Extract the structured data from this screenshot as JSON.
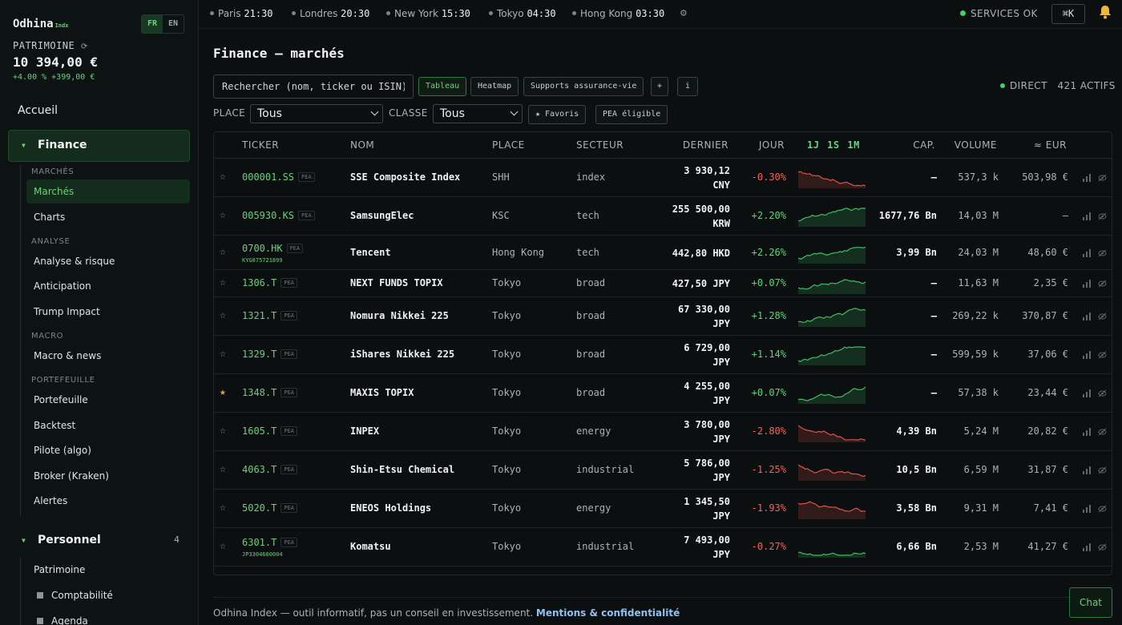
{
  "brand": {
    "name": "Odhina",
    "sub": "Indx"
  },
  "lang": {
    "fr": "FR",
    "en": "EN"
  },
  "patrimoine": {
    "label": "PATRIMOINE",
    "refresh_glyph": "⟳",
    "value": "10 394,00 €",
    "change": "+4.00 % +399,00 €"
  },
  "nav": {
    "accueil": "Accueil",
    "finance": {
      "title": "Finance",
      "groups": {
        "marches": "MARCHÉS",
        "analyse": "ANALYSE",
        "macro": "MACRO",
        "portefeuille": "PORTEFEUILLE"
      },
      "items": {
        "marches": "Marchés",
        "charts": "Charts",
        "analyse_risque": "Analyse & risque",
        "anticipation": "Anticipation",
        "trump": "Trump Impact",
        "macro_news": "Macro & news",
        "portefeuille": "Portefeuille",
        "backtest": "Backtest",
        "pilote": "Pilote (algo)",
        "broker": "Broker (Kraken)",
        "alertes": "Alertes"
      }
    },
    "personnel": {
      "title": "Personnel",
      "count": "4",
      "items": {
        "patrimoine": "Patrimoine",
        "comptabilite": "Comptabilité",
        "agenda": "Agenda"
      }
    }
  },
  "clocks": [
    {
      "city": "Paris",
      "time": "21:30"
    },
    {
      "city": "Londres",
      "time": "20:30"
    },
    {
      "city": "New York",
      "time": "15:30"
    },
    {
      "city": "Tokyo",
      "time": "04:30"
    },
    {
      "city": "Hong Kong",
      "time": "03:30"
    }
  ],
  "topbar": {
    "gear_glyph": "⚙",
    "services": "SERVICES OK",
    "shortcut": "⌘K"
  },
  "page": {
    "title": "Finance — marchés"
  },
  "toolbar": {
    "search_placeholder": "Rechercher (nom, ticker ou ISIN).",
    "tableau": "Tableau",
    "heatmap": "Heatmap",
    "supports": "Supports assurance-vie",
    "plus": "+",
    "info": "i",
    "direct": "DIRECT",
    "actifs": "421 ACTIFS"
  },
  "filters": {
    "place_label": "PLACE",
    "place_value": "Tous",
    "classe_label": "CLASSE",
    "classe_value": "Tous",
    "favoris": "★ Favoris",
    "pea": "PEA éligible"
  },
  "table": {
    "headers": {
      "ticker": "TICKER",
      "nom": "NOM",
      "place": "PLACE",
      "secteur": "SECTEUR",
      "dernier": "DERNIER",
      "jour": "JOUR",
      "periods": "1J 1S 1M",
      "cap": "CAP.",
      "volume": "VOLUME",
      "eur": "≈ EUR"
    },
    "pea_badge": "PEA",
    "star_glyph": "☆",
    "star_fav_glyph": "★",
    "rows": [
      {
        "ticker": "000001.SS",
        "isin": "",
        "nom": "SSE Composite Index",
        "place": "SHH",
        "secteur": "index",
        "dernier_1": "3 930,12",
        "dernier_2": "CNY",
        "jour": "-0.30%",
        "cap": "—",
        "volume": "537,3 k",
        "eur": "503,98 €",
        "fav": false,
        "trend": "down"
      },
      {
        "ticker": "005930.KS",
        "isin": "",
        "nom": "SamsungElec",
        "place": "KSC",
        "secteur": "tech",
        "dernier_1": "255 500,00",
        "dernier_2": "KRW",
        "jour": "+2.20%",
        "cap": "1677,76 Bn",
        "volume": "14,03 M",
        "eur": "—",
        "fav": false,
        "trend": "up"
      },
      {
        "ticker": "0700.HK",
        "isin": "KYG875721899",
        "nom": "Tencent",
        "place": "Hong Kong",
        "secteur": "tech",
        "dernier_1": "442,80 HKD",
        "dernier_2": "",
        "jour": "+2.26%",
        "cap": "3,99 Bn",
        "volume": "24,03 M",
        "eur": "48,60 €",
        "fav": false,
        "trend": "up"
      },
      {
        "ticker": "1306.T",
        "isin": "",
        "nom": "NEXT FUNDS TOPIX",
        "place": "Tokyo",
        "secteur": "broad",
        "dernier_1": "427,50 JPY",
        "dernier_2": "",
        "jour": "+0.07%",
        "cap": "—",
        "volume": "11,63 M",
        "eur": "2,35 €",
        "fav": false,
        "trend": "up"
      },
      {
        "ticker": "1321.T",
        "isin": "",
        "nom": "Nomura Nikkei 225",
        "place": "Tokyo",
        "secteur": "broad",
        "dernier_1": "67 330,00",
        "dernier_2": "JPY",
        "jour": "+1.28%",
        "cap": "—",
        "volume": "269,22 k",
        "eur": "370,87 €",
        "fav": false,
        "trend": "up"
      },
      {
        "ticker": "1329.T",
        "isin": "",
        "nom": "iShares Nikkei 225",
        "place": "Tokyo",
        "secteur": "broad",
        "dernier_1": "6 729,00",
        "dernier_2": "JPY",
        "jour": "+1.14%",
        "cap": "—",
        "volume": "599,59 k",
        "eur": "37,06 €",
        "fav": false,
        "trend": "up"
      },
      {
        "ticker": "1348.T",
        "isin": "",
        "nom": "MAXIS TOPIX",
        "place": "Tokyo",
        "secteur": "broad",
        "dernier_1": "4 255,00",
        "dernier_2": "JPY",
        "jour": "+0.07%",
        "cap": "—",
        "volume": "57,38 k",
        "eur": "23,44 €",
        "fav": true,
        "trend": "up"
      },
      {
        "ticker": "1605.T",
        "isin": "",
        "nom": "INPEX",
        "place": "Tokyo",
        "secteur": "energy",
        "dernier_1": "3 780,00",
        "dernier_2": "JPY",
        "jour": "-2.80%",
        "cap": "4,39 Bn",
        "volume": "5,24 M",
        "eur": "20,82 €",
        "fav": false,
        "trend": "down"
      },
      {
        "ticker": "4063.T",
        "isin": "",
        "nom": "Shin-Etsu Chemical",
        "place": "Tokyo",
        "secteur": "industrial",
        "dernier_1": "5 786,00",
        "dernier_2": "JPY",
        "jour": "-1.25%",
        "cap": "10,5 Bn",
        "volume": "6,59 M",
        "eur": "31,87 €",
        "fav": false,
        "trend": "down"
      },
      {
        "ticker": "5020.T",
        "isin": "",
        "nom": "ENEOS Holdings",
        "place": "Tokyo",
        "secteur": "energy",
        "dernier_1": "1 345,50",
        "dernier_2": "JPY",
        "jour": "-1.93%",
        "cap": "3,58 Bn",
        "volume": "9,31 M",
        "eur": "7,41 €",
        "fav": false,
        "trend": "down"
      },
      {
        "ticker": "6301.T",
        "isin": "JP3304600004",
        "nom": "Komatsu",
        "place": "Tokyo",
        "secteur": "industrial",
        "dernier_1": "7 493,00",
        "dernier_2": "JPY",
        "jour": "-0.27%",
        "cap": "6,66 Bn",
        "volume": "2,53 M",
        "eur": "41,27 €",
        "fav": false,
        "trend": "up"
      }
    ]
  },
  "footer": {
    "text": "Odhina Index — outil informatif, pas un conseil en investissement.",
    "link": "Mentions & confidentialité"
  },
  "chat": "Chat",
  "colors": {
    "accent": "#6ecf7f",
    "up": "#5fd47c",
    "down": "#f0645a",
    "fav": "#f0a33a"
  }
}
